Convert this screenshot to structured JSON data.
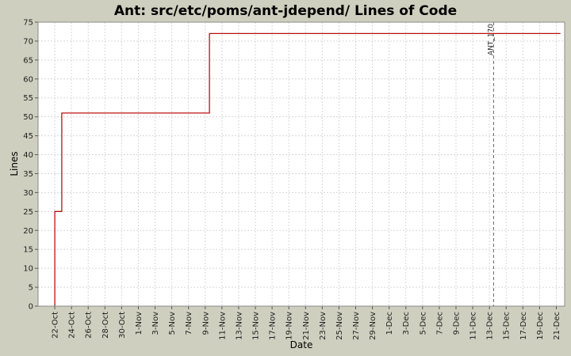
{
  "colors": {
    "page_background": "#cfcfbf",
    "plot_background": "#ffffff",
    "grid": "#d8d8d8",
    "series": "#bb1111",
    "marker": "#666666"
  },
  "chart_data": {
    "type": "line",
    "step": true,
    "title": "Ant: src/etc/poms/ant-jdepend/ Lines of Code",
    "xlabel": "Date",
    "ylabel": "Lines",
    "xlim": [
      "2007-10-20",
      "2007-12-22"
    ],
    "ylim": [
      0,
      75
    ],
    "grid": true,
    "yticks": [
      0,
      5,
      10,
      15,
      20,
      25,
      30,
      35,
      40,
      45,
      50,
      55,
      60,
      65,
      70,
      75
    ],
    "xticks": [
      {
        "date": "2007-10-22",
        "label": "22-Oct"
      },
      {
        "date": "2007-10-24",
        "label": "24-Oct"
      },
      {
        "date": "2007-10-26",
        "label": "26-Oct"
      },
      {
        "date": "2007-10-28",
        "label": "28-Oct"
      },
      {
        "date": "2007-10-30",
        "label": "30-Oct"
      },
      {
        "date": "2007-11-01",
        "label": "1-Nov"
      },
      {
        "date": "2007-11-03",
        "label": "3-Nov"
      },
      {
        "date": "2007-11-05",
        "label": "5-Nov"
      },
      {
        "date": "2007-11-07",
        "label": "7-Nov"
      },
      {
        "date": "2007-11-09",
        "label": "9-Nov"
      },
      {
        "date": "2007-11-11",
        "label": "11-Nov"
      },
      {
        "date": "2007-11-13",
        "label": "13-Nov"
      },
      {
        "date": "2007-11-15",
        "label": "15-Nov"
      },
      {
        "date": "2007-11-17",
        "label": "17-Nov"
      },
      {
        "date": "2007-11-19",
        "label": "19-Nov"
      },
      {
        "date": "2007-11-21",
        "label": "21-Nov"
      },
      {
        "date": "2007-11-23",
        "label": "23-Nov"
      },
      {
        "date": "2007-11-25",
        "label": "25-Nov"
      },
      {
        "date": "2007-11-27",
        "label": "27-Nov"
      },
      {
        "date": "2007-11-29",
        "label": "29-Nov"
      },
      {
        "date": "2007-12-01",
        "label": "1-Dec"
      },
      {
        "date": "2007-12-03",
        "label": "3-Dec"
      },
      {
        "date": "2007-12-05",
        "label": "5-Dec"
      },
      {
        "date": "2007-12-07",
        "label": "7-Dec"
      },
      {
        "date": "2007-12-09",
        "label": "9-Dec"
      },
      {
        "date": "2007-12-11",
        "label": "11-Dec"
      },
      {
        "date": "2007-12-13",
        "label": "13-Dec"
      },
      {
        "date": "2007-12-15",
        "label": "15-Dec"
      },
      {
        "date": "2007-12-17",
        "label": "17-Dec"
      },
      {
        "date": "2007-12-19",
        "label": "19-Dec"
      },
      {
        "date": "2007-12-21",
        "label": "21-Dec"
      }
    ],
    "series": [
      {
        "points": [
          {
            "x": "2007-10-22T00:00",
            "y": 0
          },
          {
            "x": "2007-10-22T00:00",
            "y": 25
          },
          {
            "x": "2007-10-22T20:00",
            "y": 25
          },
          {
            "x": "2007-10-22T20:00",
            "y": 51
          },
          {
            "x": "2007-11-09T12:00",
            "y": 51
          },
          {
            "x": "2007-11-09T12:00",
            "y": 72
          },
          {
            "x": "2007-12-21T12:00",
            "y": 72
          }
        ]
      }
    ],
    "markers": [
      {
        "x": "2007-12-13T12:00",
        "label": "ANT_170"
      }
    ]
  }
}
